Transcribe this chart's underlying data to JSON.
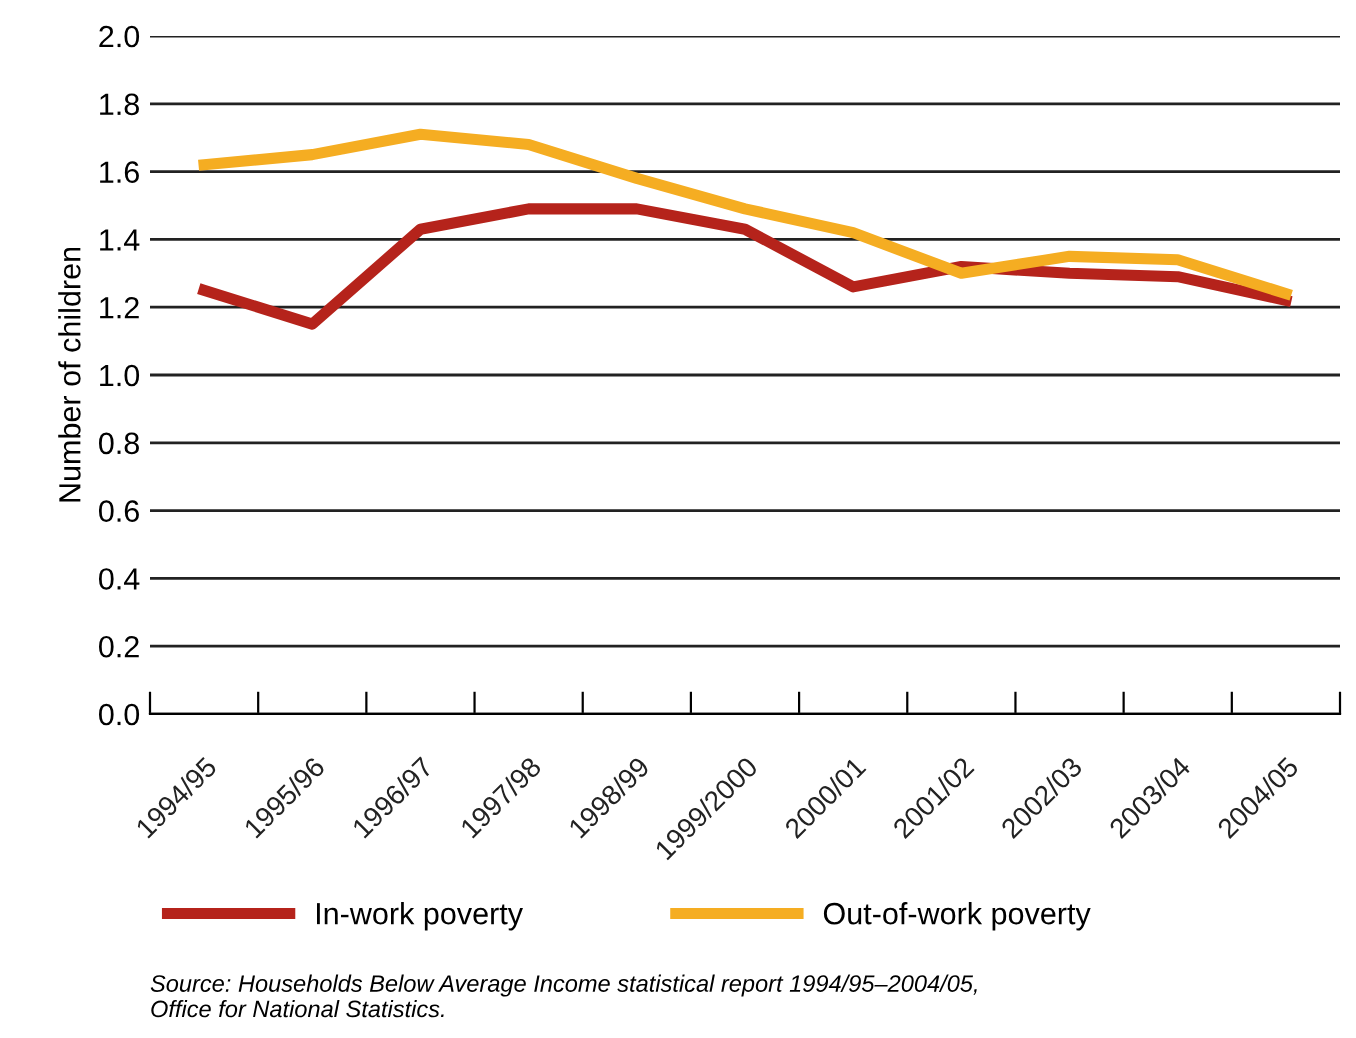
{
  "chart_data": {
    "type": "line",
    "ylabel": "Number of children",
    "categories": [
      "1994/95",
      "1995/96",
      "1996/97",
      "1997/98",
      "1998/99",
      "1999/2000",
      "2000/01",
      "2001/02",
      "2002/03",
      "2003/04",
      "2004/05"
    ],
    "series": [
      {
        "name": "In-work poverty",
        "color": "#b5231b",
        "values": [
          1.25,
          1.15,
          1.43,
          1.49,
          1.49,
          1.43,
          1.26,
          1.32,
          1.3,
          1.29,
          1.22
        ]
      },
      {
        "name": "Out-of-work poverty",
        "color": "#f5ad22",
        "values": [
          1.62,
          1.65,
          1.71,
          1.68,
          1.58,
          1.49,
          1.42,
          1.3,
          1.35,
          1.34,
          1.24
        ]
      }
    ],
    "ylim": [
      0,
      2.0
    ],
    "yticks": [
      {
        "value": 0,
        "label": "0.0"
      },
      {
        "value": 0.2,
        "label": "0.2"
      },
      {
        "value": 0.4,
        "label": "0.4"
      },
      {
        "value": 0.6,
        "label": "0.6"
      },
      {
        "value": 0.8,
        "label": "0.8"
      },
      {
        "value": 1.0,
        "label": "1.0"
      },
      {
        "value": 1.2,
        "label": "1.2"
      },
      {
        "value": 1.4,
        "label": "1.4"
      },
      {
        "value": 1.6,
        "label": "1.6"
      },
      {
        "value": 1.8,
        "label": "1.8"
      },
      {
        "value": 2.0,
        "label": "2.0"
      }
    ],
    "grid": "y",
    "legend": "bottom",
    "line_style": "solid",
    "annotations": [
      "Source: Households Below Average Income statistical report 1994/95–2004/05,\nOffice for National Statistics."
    ]
  }
}
